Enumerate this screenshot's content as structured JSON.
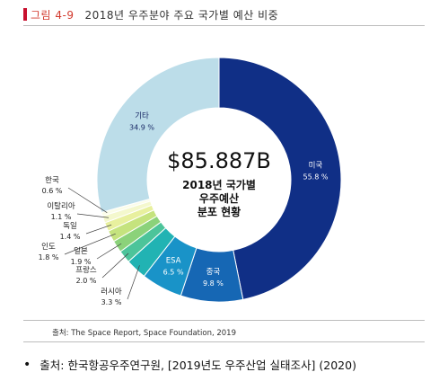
{
  "figure": {
    "number": "그림 4-9",
    "title": "2018년 우주분야 주요 국가별 예산 비중",
    "accent": "#c8102e"
  },
  "chart_data": {
    "type": "pie",
    "variant": "donut",
    "center_value": "$85.887B",
    "center_label_lines": [
      "2018년 국가별",
      "우주예산",
      "분포 현황"
    ],
    "slices": [
      {
        "label": "미국",
        "value": 55.8,
        "value_text": "55.8 %",
        "color": "#102f86"
      },
      {
        "label": "중국",
        "value": 9.8,
        "value_text": "9.8 %",
        "color": "#1667b4"
      },
      {
        "label": "ESA",
        "value": 6.5,
        "value_text": "6.5 %",
        "color": "#1993c8"
      },
      {
        "label": "러시아",
        "value": 3.3,
        "value_text": "3.3 %",
        "color": "#21b3b3"
      },
      {
        "label": "프랑스",
        "value": 2.0,
        "value_text": "2.0 %",
        "color": "#4cc49a"
      },
      {
        "label": "일본",
        "value": 1.9,
        "value_text": "1.9 %",
        "color": "#8bd27a"
      },
      {
        "label": "인도",
        "value": 1.8,
        "value_text": "1.8 %",
        "color": "#c5e37e"
      },
      {
        "label": "독일",
        "value": 1.4,
        "value_text": "1.4 %",
        "color": "#e8f09e"
      },
      {
        "label": "이탈리아",
        "value": 1.1,
        "value_text": "1.1 %",
        "color": "#f4f8cd"
      },
      {
        "label": "한국",
        "value": 0.6,
        "value_text": "0.6 %",
        "color": "#fbfde9"
      },
      {
        "label": "기타",
        "value": 34.9,
        "value_text": "34.9 %",
        "color": "#bcdde9"
      }
    ]
  },
  "source_line": "출처: The Space Report, Space Foundation, 2019",
  "footnote": {
    "bullet": "•",
    "text": "출처: 한국항공우주연구원, [2019년도 우주산업 실태조사] (2020)"
  }
}
